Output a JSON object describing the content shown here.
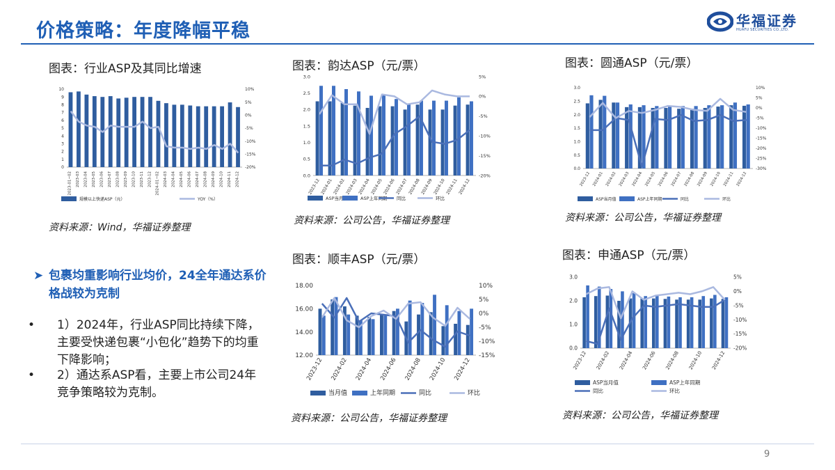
{
  "header": {
    "title": "价格策略：年度降幅平稳",
    "logo_name": "华福证券",
    "logo_en": "HUAFU SECURITIES CO.,LTD.",
    "accent_color": "#1f5fb5"
  },
  "bullets": {
    "head": "包裹均重影响行业均价，24全年通达系价格战较为克制",
    "items": [
      "1）2024年，行业ASP同比持续下降，主要受快递包裹“小包化”趋势下的均重下降影响；",
      "2）通达系ASP看，主要上市公司24年竞争策略较为克制。"
    ]
  },
  "page_number": "9",
  "chart_data": [
    {
      "id": "industry",
      "panel_title": "图表：行业ASP及其同比增速",
      "source": "资料来源：Wind，华福证券整理",
      "type": "bar",
      "categories": [
        "2023-01~02",
        "2023-03",
        "2023-04",
        "2023-05",
        "2023-06",
        "2023-07",
        "2023-08",
        "2023-09",
        "2023-10",
        "2023-11",
        "2023-12",
        "2024-01~02",
        "2024-03",
        "2024-04",
        "2024-05",
        "2024-06",
        "2024-07",
        "2024-08",
        "2024-09",
        "2024-10",
        "2024-11",
        "2024-12"
      ],
      "left_axis": {
        "min": 0,
        "max": 10,
        "ticks": [
          "0",
          "1",
          "2",
          "3",
          "4",
          "5",
          "6",
          "7",
          "8",
          "9",
          "10"
        ]
      },
      "right_axis": {
        "min": -20,
        "max": 10,
        "ticks": [
          "-20%",
          "-15%",
          "-10%",
          "-5%",
          "0%",
          "5%",
          "10%"
        ]
      },
      "bars": [
        {
          "name": "规模以上快递ASP（元）",
          "color": "#2f5d9f",
          "values": [
            9.6,
            9.7,
            9.3,
            9.1,
            9.0,
            9.1,
            8.8,
            8.9,
            9.0,
            9.0,
            9.0,
            8.5,
            8.2,
            8.0,
            8.0,
            7.9,
            7.8,
            7.8,
            7.8,
            7.8,
            8.3,
            7.7
          ]
        }
      ],
      "lines": [
        {
          "name": "YOY（%）",
          "color": "#aab9e0",
          "values": [
            1.5,
            -2.5,
            -4.0,
            -4.5,
            -6.5,
            -4.0,
            -4.5,
            -4.5,
            -4.5,
            -2.5,
            -5.0,
            -4.5,
            -12.0,
            -12.5,
            -12.5,
            -13.0,
            -12.5,
            -13.0,
            -11.5,
            -13.0,
            -11.0,
            -14.5
          ]
        }
      ],
      "legend": [
        "规模以上快递ASP（元）",
        "YOY（%）"
      ]
    },
    {
      "id": "yunda",
      "panel_title": "图表：韵达ASP（元/票）",
      "source": "资料来源：公司公告，华福证券整理",
      "type": "bar",
      "categories": [
        "2023-12",
        "2024-01",
        "2024-02",
        "2024-03",
        "2024-04",
        "2024-05",
        "2024-06",
        "2024-07",
        "2024-08",
        "2024-09",
        "2024-10",
        "2024-11",
        "2024-12"
      ],
      "left_axis": {
        "min": 0,
        "max": 3,
        "ticks": [
          "0.0",
          "0.5",
          "1.0",
          "1.5",
          "2.0",
          "2.5",
          "3.0"
        ]
      },
      "right_axis": {
        "min": -20,
        "max": 5,
        "ticks": [
          "-20%",
          "-15%",
          "-10%",
          "-5%",
          "0%",
          "5%"
        ]
      },
      "bars": [
        {
          "name": "ASP当月值",
          "color": "#2f5d9f",
          "values": [
            2.25,
            2.25,
            2.2,
            2.12,
            2.05,
            2.1,
            2.1,
            2.0,
            2.15,
            2.0,
            2.0,
            2.12,
            2.15
          ]
        },
        {
          "name": "ASP上年同期",
          "color": "#3f70c2",
          "values": [
            2.72,
            2.72,
            2.62,
            2.55,
            2.42,
            2.45,
            2.32,
            2.17,
            2.27,
            2.27,
            2.27,
            2.37,
            2.25
          ]
        }
      ],
      "lines": [
        {
          "name": "同比",
          "color": "#4a6fb8",
          "values": [
            -17.5,
            -17.5,
            -16.0,
            -17.0,
            -15.5,
            -14.5,
            -9.5,
            -7.5,
            -5.0,
            -11.5,
            -12.0,
            -11.0,
            -8.5
          ]
        },
        {
          "name": "环比",
          "color": "#aab9e0",
          "values": [
            -4.5,
            0.3,
            -2.0,
            -2.0,
            -9.5,
            0.5,
            0.0,
            -2.0,
            -1.5,
            1.5,
            0.5,
            0.0,
            0.0
          ]
        }
      ],
      "legend": [
        "ASP当月值",
        "ASP上年同期",
        "同比",
        "环比"
      ]
    },
    {
      "id": "yuantong",
      "panel_title": "图表：圆通ASP（元/票）",
      "source": "资料来源：公司公告，华福证券整理",
      "type": "bar",
      "categories": [
        "2023-12",
        "2024-01",
        "2024-02",
        "2024-03",
        "2024-04",
        "2024-05",
        "2024-06",
        "2024-07",
        "2024-08",
        "2024-09",
        "2024-10",
        "2024-11",
        "2024-12"
      ],
      "left_axis": {
        "min": 0,
        "max": 3,
        "ticks": [
          "0.0",
          "0.5",
          "1.0",
          "1.5",
          "2.0",
          "2.5",
          "3.0"
        ]
      },
      "right_axis": {
        "min": -30,
        "max": 10,
        "ticks": [
          "-30%",
          "-25%",
          "-20%",
          "-15%",
          "-10%",
          "-5%",
          "0%",
          "5%",
          "10%"
        ]
      },
      "bars": [
        {
          "name": "ASP当月值",
          "color": "#2f5d9f",
          "values": [
            2.42,
            2.55,
            2.45,
            2.28,
            2.28,
            2.25,
            2.25,
            2.22,
            2.22,
            2.25,
            2.3,
            2.35,
            2.33
          ]
        },
        {
          "name": "ASP上年同期",
          "color": "#3f70c2",
          "values": [
            2.72,
            2.7,
            2.45,
            2.38,
            2.35,
            2.32,
            2.32,
            2.32,
            2.32,
            2.35,
            2.35,
            2.45,
            2.38
          ]
        }
      ],
      "lines": [
        {
          "name": "同比",
          "color": "#4a6fb8",
          "values": [
            -11.0,
            -11.0,
            -5.0,
            -6.0,
            -29.0,
            -5.5,
            -6.0,
            -3.5,
            -6.5,
            -6.0,
            -3.5,
            -6.5,
            -6.0
          ]
        },
        {
          "name": "环比",
          "color": "#aab9e0",
          "values": [
            -4.5,
            2.5,
            -5.0,
            -1.5,
            -2.5,
            -1.0,
            1.0,
            0.5,
            -1.0,
            -1.5,
            4.5,
            -1.0,
            -2.0
          ]
        }
      ],
      "legend": [
        "ASP当月值",
        "ASP上年同期",
        "同比",
        "环比"
      ]
    },
    {
      "id": "shunfeng",
      "panel_title": "图表：顺丰ASP（元/票）",
      "source": "资料来源：公司公告，华福证券整理",
      "type": "bar",
      "categories": [
        "2023-12",
        "2024-01",
        "2024-02",
        "2024-03",
        "2024-04",
        "2024-05",
        "2024-06",
        "2024-07",
        "2024-08",
        "2024-09",
        "2024-10",
        "2024-11",
        "2024-12"
      ],
      "x_ticks": [
        "2023-12",
        "2024-02",
        "2024-04",
        "2024-06",
        "2024-08",
        "2024-10",
        "2024-12"
      ],
      "left_axis": {
        "min": 12,
        "max": 18,
        "ticks": [
          "12.00",
          "14.00",
          "16.00",
          "18.00"
        ]
      },
      "right_axis": {
        "min": -15,
        "max": 10,
        "ticks": [
          "-15%",
          "-10%",
          "-5%",
          "0%",
          "5%",
          "10%"
        ]
      },
      "bars": [
        {
          "name": "当月值",
          "color": "#2f5d9f",
          "values": [
            16.0,
            16.8,
            16.2,
            15.4,
            15.3,
            15.5,
            15.8,
            14.9,
            15.5,
            15.7,
            14.5,
            14.7,
            14.6
          ]
        },
        {
          "name": "上年同期",
          "color": "#3f70c2",
          "values": [
            15.4,
            17.0,
            15.5,
            15.0,
            15.1,
            15.4,
            16.0,
            16.7,
            16.5,
            17.2,
            16.3,
            15.8,
            16.0
          ]
        }
      ],
      "lines": [
        {
          "name": "同比",
          "color": "#4a6fb8",
          "values": [
            3.5,
            -1.5,
            5.5,
            -3.0,
            0.0,
            -0.5,
            -1.0,
            -10.5,
            -6.0,
            -9.5,
            -12.0,
            -6.5,
            -8.0
          ]
        },
        {
          "name": "环比",
          "color": "#aab9e0",
          "values": [
            -1.5,
            5.5,
            -2.5,
            -5.0,
            -1.0,
            1.0,
            -2.0,
            3.5,
            4.0,
            -1.5,
            -4.5,
            2.0,
            -2.0
          ]
        }
      ],
      "legend": [
        "当月值",
        "上年同期",
        "同比",
        "环比"
      ]
    },
    {
      "id": "shentong",
      "panel_title": "图表：申通ASP（元/票）",
      "source": "资料来源：公司公告，华福证券整理",
      "type": "bar",
      "categories": [
        "2023-12",
        "2024-01",
        "2024-02",
        "2024-03",
        "2024-04",
        "2024-05",
        "2024-06",
        "2024-07",
        "2024-08",
        "2024-09",
        "2024-10",
        "2024-11",
        "2024-12"
      ],
      "x_ticks": [
        "2023-12",
        "2024-02",
        "2024-04",
        "2024-06",
        "2024-08",
        "2024-10",
        "2024-12"
      ],
      "left_axis": {
        "min": 0,
        "max": 3,
        "ticks": [
          "0.0",
          "1.0",
          "2.0",
          "3.0"
        ]
      },
      "right_axis": {
        "min": -20,
        "max": 5,
        "ticks": [
          "-20%",
          "-15%",
          "-10%",
          "-5%",
          "0%",
          "5%"
        ]
      },
      "bars": [
        {
          "name": "ASP当月值",
          "color": "#2f5d9f",
          "values": [
            2.15,
            2.2,
            2.22,
            2.0,
            2.1,
            2.1,
            2.1,
            2.08,
            2.05,
            2.05,
            2.05,
            2.1,
            2.08
          ]
        },
        {
          "name": "ASP上年同期",
          "color": "#3f70c2",
          "values": [
            2.65,
            2.6,
            2.5,
            2.4,
            2.32,
            2.2,
            2.22,
            2.18,
            2.15,
            2.15,
            2.2,
            2.25,
            2.15
          ]
        }
      ],
      "lines": [
        {
          "name": "同比",
          "color": "#4a6fb8",
          "values": [
            -17.5,
            -18.5,
            -6.0,
            -17.0,
            -9.5,
            -5.0,
            -5.5,
            -5.0,
            -4.5,
            -5.0,
            -5.5,
            -5.5,
            -3.0
          ]
        },
        {
          "name": "环比",
          "color": "#aab9e0",
          "values": [
            -1.0,
            1.0,
            1.5,
            -9.5,
            0.0,
            -3.0,
            -1.5,
            -1.0,
            -0.5,
            -1.0,
            0.0,
            1.5,
            -3.0
          ]
        }
      ],
      "legend": [
        "ASP当月值",
        "ASP上年同期",
        "同比",
        "环比"
      ]
    }
  ]
}
